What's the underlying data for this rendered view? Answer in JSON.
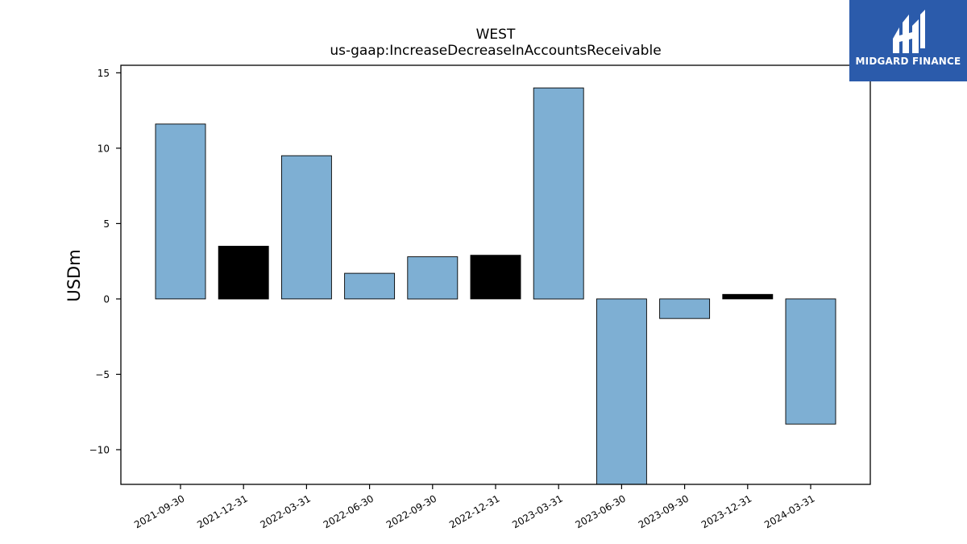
{
  "brand": {
    "name": "MIDGARD FINANCE",
    "bg_color": "#2b5bab",
    "logo_icon": "midgard-monogram-icon"
  },
  "chart_data": {
    "type": "bar",
    "title": "WEST",
    "subtitle": "us-gaap:IncreaseDecreaseInAccountsReceivable",
    "xlabel": "",
    "ylabel": "USDm",
    "ylim": [
      -12.3,
      15.5
    ],
    "yticks": [
      15,
      10,
      5,
      0,
      -5,
      -10
    ],
    "ytick_labels": [
      "15",
      "10",
      "5",
      "0",
      "−5",
      "−10"
    ],
    "grid": false,
    "legend": "none",
    "categories": [
      "2021-09-30",
      "2021-12-31",
      "2022-03-31",
      "2022-06-30",
      "2022-09-30",
      "2022-12-31",
      "2023-03-31",
      "2023-06-30",
      "2023-09-30",
      "2023-12-31",
      "2024-03-31"
    ],
    "values": [
      11.6,
      3.5,
      9.5,
      1.7,
      2.8,
      2.9,
      14.0,
      -12.3,
      -1.3,
      0.3,
      -8.3
    ],
    "bar_colors": [
      "#7eafd3",
      "#000000",
      "#7eafd3",
      "#7eafd3",
      "#7eafd3",
      "#000000",
      "#7eafd3",
      "#7eafd3",
      "#7eafd3",
      "#000000",
      "#7eafd3"
    ]
  }
}
